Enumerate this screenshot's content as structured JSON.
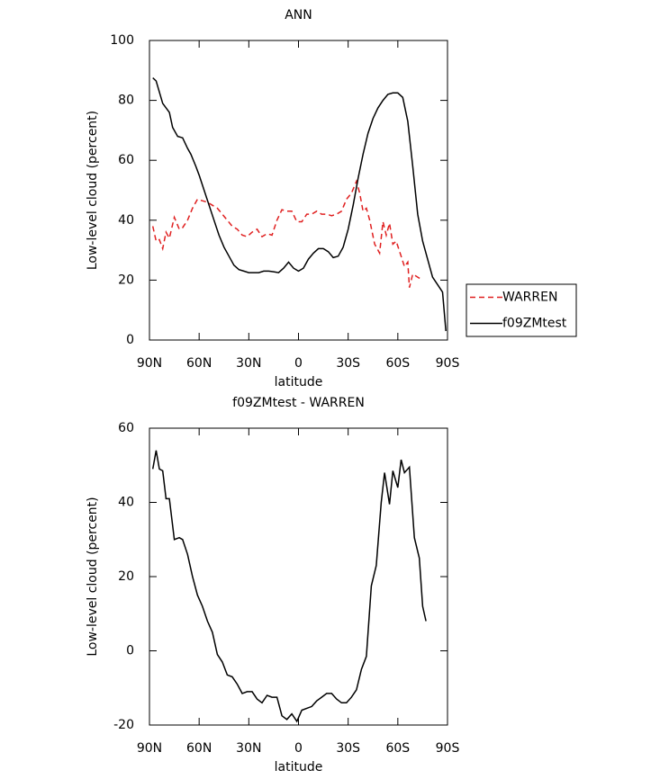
{
  "chart_data": [
    {
      "type": "line",
      "title": "ANN",
      "x_label": "latitude",
      "y_label": "Low-level cloud (percent)",
      "xlim": [
        90,
        -90
      ],
      "ylim": [
        0,
        100
      ],
      "xticks": [
        {
          "value": 90,
          "label": "90N"
        },
        {
          "value": 60,
          "label": "60N"
        },
        {
          "value": 30,
          "label": "30N"
        },
        0,
        {
          "value": -30,
          "label": "30S"
        },
        {
          "value": -60,
          "label": "60S"
        },
        {
          "value": -90,
          "label": "90S"
        }
      ],
      "yticks": [
        0,
        20,
        40,
        60,
        80,
        100
      ],
      "legend": "outside-right-bottom",
      "series": [
        {
          "name": "WARREN",
          "color": "#e02020",
          "linestyle": "dashed",
          "x": [
            88,
            86,
            84,
            82,
            80,
            78,
            75,
            72,
            70,
            67,
            64,
            61,
            58,
            55,
            52,
            49,
            46,
            43,
            40,
            37,
            34,
            31,
            28,
            25,
            22,
            19,
            16,
            13,
            10,
            7,
            4,
            1,
            -2,
            -5,
            -8,
            -11,
            -14,
            -17,
            -20,
            -23,
            -26,
            -29,
            -32,
            -35,
            -37,
            -39,
            -41,
            -43,
            -46,
            -49,
            -51,
            -53,
            -55,
            -57,
            -59,
            -62,
            -64,
            -66,
            -67,
            -69,
            -72,
            -75
          ],
          "values": [
            38,
            33,
            33.5,
            30.5,
            36,
            34,
            41,
            37,
            37.5,
            40,
            44,
            47,
            46.5,
            46,
            45,
            44,
            42,
            40,
            38,
            37,
            35,
            34.5,
            36,
            37,
            34.5,
            35.5,
            35,
            40,
            43.5,
            43,
            43,
            39.5,
            39.5,
            42,
            42,
            43,
            42,
            42,
            41.5,
            42,
            43,
            47,
            49,
            53,
            49,
            43,
            44,
            40,
            32,
            29,
            39.5,
            35,
            39,
            32,
            33,
            28,
            24.5,
            26,
            17.5,
            22,
            21,
            20
          ]
        },
        {
          "name": "f09ZMtest",
          "color": "#000000",
          "linestyle": "solid",
          "x": [
            88,
            86,
            82,
            78,
            76,
            73,
            70,
            67,
            65,
            62,
            60,
            57,
            54,
            51,
            48,
            45,
            42,
            39,
            36,
            33,
            30,
            27,
            24,
            21,
            18,
            15,
            12,
            9,
            6,
            3,
            0,
            -3,
            -6,
            -9,
            -12,
            -15,
            -18,
            -21,
            -24,
            -27,
            -30,
            -33,
            -36,
            -39,
            -42,
            -45,
            -48,
            -51,
            -54,
            -57,
            -60,
            -63,
            -66,
            -69,
            -72,
            -75,
            -78,
            -81,
            -84,
            -87,
            -89
          ],
          "values": [
            87.5,
            86.5,
            79,
            76,
            71,
            68,
            67.5,
            64,
            62,
            58,
            55,
            50,
            45,
            40,
            35,
            31,
            28,
            25,
            23.5,
            23,
            22.5,
            22.5,
            22.5,
            23,
            23,
            22.8,
            22.5,
            24,
            26,
            24,
            23,
            24,
            27,
            29,
            30.5,
            30.5,
            29.5,
            27.5,
            28,
            31,
            37,
            45,
            54,
            62,
            69,
            74,
            77.5,
            80,
            82,
            82.5,
            82.5,
            81,
            73,
            58,
            42,
            33,
            27,
            21,
            18.5,
            16,
            3
          ]
        }
      ]
    },
    {
      "type": "line",
      "title": "f09ZMtest - WARREN",
      "x_label": "latitude",
      "y_label": "Low-level cloud (percent)",
      "xlim": [
        90,
        -90
      ],
      "ylim": [
        -20,
        60
      ],
      "xticks": [
        {
          "value": 90,
          "label": "90N"
        },
        {
          "value": 60,
          "label": "60N"
        },
        {
          "value": 30,
          "label": "30N"
        },
        0,
        {
          "value": -30,
          "label": "30S"
        },
        {
          "value": -60,
          "label": "60S"
        },
        {
          "value": -90,
          "label": "90S"
        }
      ],
      "yticks": [
        -20,
        0,
        20,
        40,
        60
      ],
      "series": [
        {
          "color": "#000000",
          "linestyle": "solid",
          "x": [
            88,
            86,
            84,
            82,
            80,
            78,
            75,
            72,
            70,
            67,
            64,
            61,
            58,
            55,
            52,
            49,
            46,
            43,
            40,
            37,
            34,
            31,
            28,
            25,
            22,
            19,
            16,
            13,
            10,
            7,
            4,
            1,
            -2,
            -5,
            -8,
            -11,
            -14,
            -17,
            -20,
            -23,
            -26,
            -29,
            -32,
            -35,
            -38,
            -41,
            -44,
            -47,
            -50,
            -52,
            -55,
            -57,
            -60,
            -62,
            -64,
            -67,
            -70,
            -73,
            -75,
            -77
          ],
          "values": [
            49,
            54,
            49,
            48.5,
            41,
            41,
            30,
            30.5,
            30,
            26,
            20,
            15,
            12,
            8,
            5,
            -1,
            -3,
            -6.5,
            -7,
            -9,
            -11.5,
            -11,
            -11,
            -13,
            -14,
            -12,
            -12.5,
            -12.5,
            -17.5,
            -18.5,
            -17,
            -19,
            -16,
            -15.5,
            -15,
            -13.5,
            -12.5,
            -11.5,
            -11.5,
            -13,
            -14,
            -14,
            -12.5,
            -10.5,
            -5,
            -1.5,
            17.5,
            23,
            40,
            48,
            39.5,
            48.5,
            44,
            51.5,
            48,
            49.5,
            30.5,
            25,
            12,
            8
          ]
        }
      ]
    }
  ]
}
